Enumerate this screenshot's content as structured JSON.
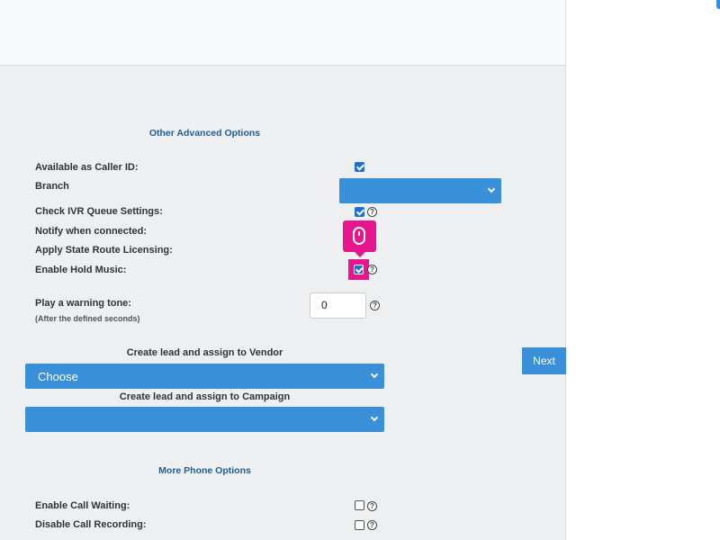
{
  "colors": {
    "accent": "#3a8fd9",
    "title": "#1d5e96",
    "cursor": "#e8168c",
    "checkbox": "#1f6fd6"
  },
  "sections": {
    "advanced_title": "Other Advanced Options",
    "phone_title": "More Phone Options"
  },
  "options": {
    "caller_id": {
      "label": "Available as Caller ID:",
      "checked": true
    },
    "branch": {
      "label": "Branch",
      "value": ""
    },
    "ivr_queue": {
      "label": "Check IVR Queue Settings:",
      "checked": true,
      "help": "?"
    },
    "notify_connected": {
      "label": "Notify when connected:"
    },
    "state_route": {
      "label": "Apply State Route Licensing:"
    },
    "hold_music": {
      "label": "Enable Hold Music:",
      "checked": true,
      "help": "?"
    },
    "warning_tone": {
      "label": "Play a warning tone:",
      "sublabel": "(After the defined seconds)",
      "value": "0",
      "help": "?"
    }
  },
  "vendor": {
    "title": "Create lead and assign to Vendor",
    "selected": "Choose"
  },
  "campaign": {
    "title": "Create lead and assign to Campaign",
    "selected": ""
  },
  "phone_options": {
    "call_waiting": {
      "label": "Enable Call Waiting:",
      "checked": false,
      "help": "?"
    },
    "call_recording": {
      "label": "Disable Call Recording:",
      "checked": false,
      "help": "?"
    }
  },
  "buttons": {
    "next": "Next"
  },
  "cursor": {
    "icon": "mouse-icon",
    "target": "enable-hold-music-checkbox"
  }
}
